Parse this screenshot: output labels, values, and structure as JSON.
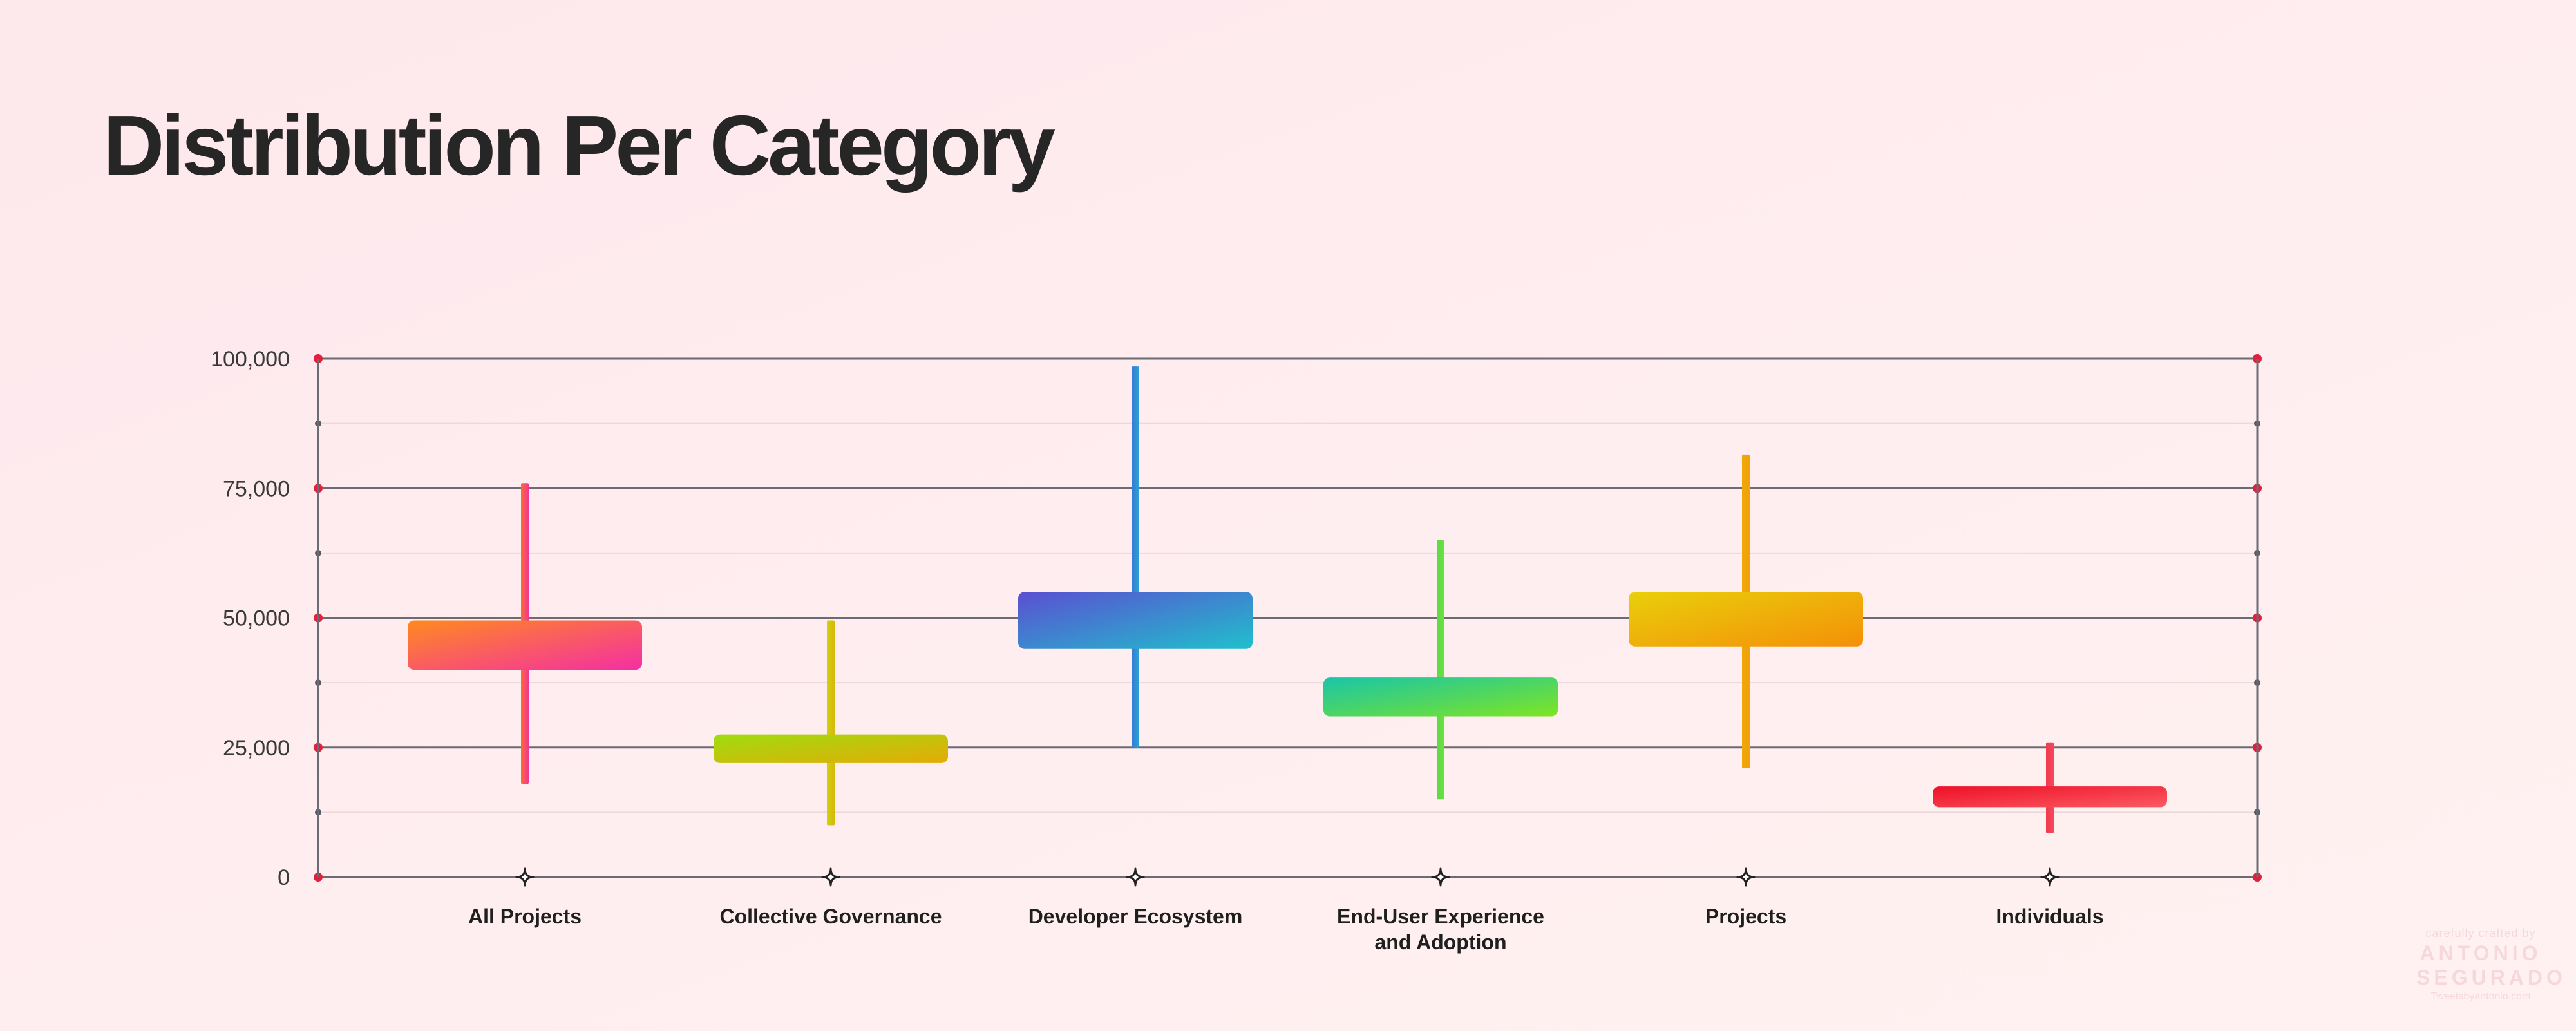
{
  "title": "Distribution Per Category",
  "watermark": {
    "line1": "carefully crafted by",
    "name_first": "ANTONIO",
    "name_second": "SEGURADO",
    "url": "Tweetsbyantonio.com"
  },
  "chart_data": {
    "type": "box",
    "title": "Distribution Per Category",
    "xlabel": "",
    "ylabel": "",
    "ylim": [
      0,
      100000
    ],
    "yticks": [
      0,
      25000,
      50000,
      75000,
      100000
    ],
    "ytick_labels": [
      "0",
      "25,000",
      "50,000",
      "75,000",
      "100,000"
    ],
    "minor_ticks": [
      12500,
      37500,
      62500,
      87500
    ],
    "grid": true,
    "categories": [
      {
        "label": [
          "All Projects"
        ],
        "min": 18000,
        "q1": 40000,
        "q3": 49500,
        "max": 76000,
        "colors": [
          "#ff8a1f",
          "#f42fa3"
        ],
        "whisker": [
          "#ff6d2a",
          "#f0359a"
        ]
      },
      {
        "label": [
          "Collective Governance"
        ],
        "min": 10000,
        "q1": 22000,
        "q3": 27500,
        "max": 49500,
        "colors": [
          "#9fdc10",
          "#e5ab06"
        ],
        "whisker": [
          "#cfd20c",
          "#d9b70c"
        ]
      },
      {
        "label": [
          "Developer Ecosystem"
        ],
        "min": 25000,
        "q1": 44000,
        "q3": 55000,
        "max": 98500,
        "colors": [
          "#5b4fd2",
          "#1fc0cc"
        ],
        "whisker": [
          "#3a78d4",
          "#2aa3d2"
        ]
      },
      {
        "label": [
          "End-User Experience",
          "and Adoption"
        ],
        "min": 15000,
        "q1": 31000,
        "q3": 38500,
        "max": 65000,
        "colors": [
          "#19c5a9",
          "#7ee522"
        ],
        "whisker": [
          "#5ad94a",
          "#6fe23a"
        ]
      },
      {
        "label": [
          "Projects"
        ],
        "min": 21000,
        "q1": 44500,
        "q3": 55000,
        "max": 81500,
        "colors": [
          "#e9cf0b",
          "#f49008"
        ],
        "whisker": [
          "#f0a70a",
          "#f2a10a"
        ]
      },
      {
        "label": [
          "Individuals"
        ],
        "min": 8500,
        "q1": 13500,
        "q3": 17500,
        "max": 26000,
        "colors": [
          "#ee1027",
          "#fb5a63"
        ],
        "whisker": [
          "#f2394e",
          "#f4495a"
        ]
      }
    ]
  }
}
